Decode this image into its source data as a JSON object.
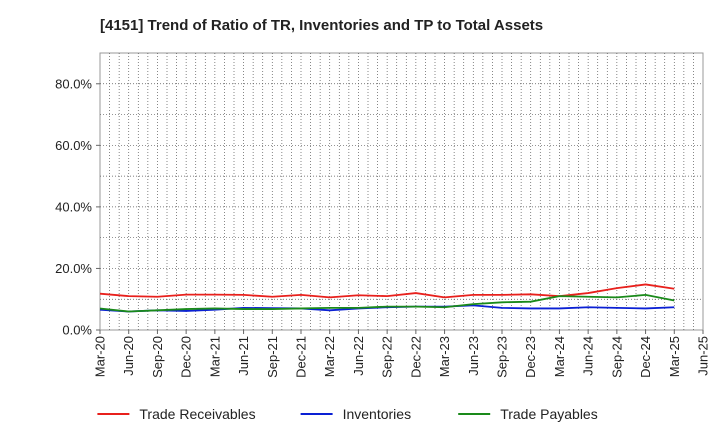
{
  "chart_data": {
    "type": "line",
    "title": "[4151]  Trend of Ratio of TR, Inventories and TP to Total Assets",
    "xlabel": "",
    "ylabel": "",
    "ylim": [
      0,
      90
    ],
    "y_ticks": [
      0,
      20,
      40,
      60,
      80
    ],
    "y_tick_labels": [
      "0.0%",
      "20.0%",
      "40.0%",
      "60.0%",
      "80.0%"
    ],
    "x_tick_labels": [
      "Mar-20",
      "Jun-20",
      "Sep-20",
      "Dec-20",
      "Mar-21",
      "Jun-21",
      "Sep-21",
      "Dec-21",
      "Mar-22",
      "Jun-22",
      "Sep-22",
      "Dec-22",
      "Mar-23",
      "Jun-23",
      "Sep-23",
      "Dec-23",
      "Mar-24",
      "Jun-24",
      "Sep-24",
      "Dec-24",
      "Mar-25",
      "Jun-25"
    ],
    "categories": [
      "Mar-20",
      "Jun-20",
      "Sep-20",
      "Dec-20",
      "Mar-21",
      "Jun-21",
      "Sep-21",
      "Dec-21",
      "Mar-22",
      "Jun-22",
      "Sep-22",
      "Dec-22",
      "Mar-23",
      "Jun-23",
      "Sep-23",
      "Dec-23",
      "Mar-24",
      "Jun-24",
      "Sep-24",
      "Dec-24",
      "Mar-25"
    ],
    "grid": true,
    "legend_position": "bottom",
    "series": [
      {
        "name": "Trade Receivables",
        "color": "#e8201c",
        "values": [
          11.8,
          11.0,
          10.8,
          11.5,
          11.5,
          11.4,
          10.8,
          11.4,
          10.6,
          11.3,
          11.0,
          12.0,
          10.6,
          11.4,
          11.4,
          11.6,
          11.0,
          12.0,
          13.6,
          14.8,
          13.4
        ]
      },
      {
        "name": "Inventories",
        "color": "#0a20d4",
        "values": [
          6.6,
          6.0,
          6.4,
          6.2,
          6.6,
          7.2,
          7.1,
          7.0,
          6.4,
          7.0,
          7.4,
          7.6,
          7.6,
          8.0,
          7.2,
          7.0,
          7.0,
          7.4,
          7.2,
          7.0,
          7.4
        ]
      },
      {
        "name": "Trade Payables",
        "color": "#1a8a1a",
        "values": [
          7.0,
          6.0,
          6.4,
          6.8,
          7.0,
          6.8,
          6.8,
          7.0,
          7.2,
          7.2,
          7.6,
          7.6,
          7.4,
          8.4,
          9.0,
          9.2,
          11.0,
          10.8,
          10.6,
          11.4,
          9.6
        ]
      }
    ]
  }
}
